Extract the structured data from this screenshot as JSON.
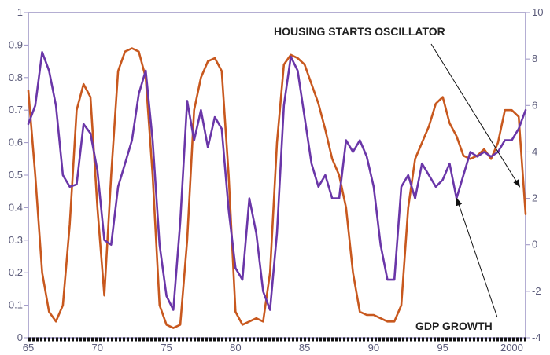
{
  "chart_data": {
    "type": "line",
    "title": "",
    "xlabel": "",
    "ylabel": "",
    "x_ticks": [
      "65",
      "70",
      "75",
      "80",
      "85",
      "90",
      "95",
      "2000"
    ],
    "left_axis": {
      "ticks": [
        "0",
        "0.1",
        "0.2",
        "0.3",
        "0.4",
        "0.5",
        "0.6",
        "0.7",
        "0.8",
        "0.9",
        "1"
      ],
      "ylim": [
        0,
        1
      ]
    },
    "right_axis": {
      "ticks": [
        "-4",
        "-2",
        "0",
        "2",
        "4",
        "6",
        "8",
        "10"
      ],
      "ylim": [
        -4,
        10
      ]
    },
    "xlim": [
      1965,
      2001
    ],
    "grid": false,
    "legend": "none",
    "annotations": [
      {
        "text": "HOUSING STARTS OSCILLATOR",
        "points_to_series": "housing_starts_oscillator",
        "target_x": 2000.8,
        "target_y": 0.44
      },
      {
        "text": "GDP GROWTH",
        "points_to_series": "gdp_growth",
        "target_x": 1995.9,
        "target_y": 2.2
      }
    ],
    "series": [
      {
        "name": "HOUSING STARTS OSCILLATOR",
        "id": "housing_starts_oscillator",
        "axis": "left",
        "color": "#c8581e",
        "x": [
          1965.0,
          1965.5,
          1966.0,
          1966.5,
          1967.0,
          1967.5,
          1968.0,
          1968.5,
          1969.0,
          1969.5,
          1970.0,
          1970.5,
          1971.0,
          1971.5,
          1972.0,
          1972.5,
          1973.0,
          1973.5,
          1974.0,
          1974.5,
          1975.0,
          1975.5,
          1976.0,
          1976.5,
          1977.0,
          1977.5,
          1978.0,
          1978.5,
          1979.0,
          1979.5,
          1980.0,
          1980.5,
          1981.0,
          1981.5,
          1982.0,
          1982.5,
          1983.0,
          1983.5,
          1984.0,
          1984.5,
          1985.0,
          1985.5,
          1986.0,
          1986.5,
          1987.0,
          1987.5,
          1988.0,
          1988.5,
          1989.0,
          1989.5,
          1990.0,
          1990.5,
          1991.0,
          1991.5,
          1992.0,
          1992.5,
          1993.0,
          1993.5,
          1994.0,
          1994.5,
          1995.0,
          1995.5,
          1996.0,
          1996.5,
          1997.0,
          1997.5,
          1998.0,
          1998.5,
          1999.0,
          1999.5,
          2000.0,
          2000.5,
          2001.0
        ],
        "values": [
          0.76,
          0.5,
          0.2,
          0.08,
          0.05,
          0.1,
          0.35,
          0.7,
          0.78,
          0.74,
          0.4,
          0.13,
          0.5,
          0.82,
          0.88,
          0.89,
          0.88,
          0.8,
          0.5,
          0.1,
          0.04,
          0.03,
          0.04,
          0.3,
          0.7,
          0.8,
          0.85,
          0.86,
          0.82,
          0.5,
          0.08,
          0.04,
          0.05,
          0.06,
          0.05,
          0.2,
          0.6,
          0.84,
          0.87,
          0.86,
          0.84,
          0.78,
          0.72,
          0.64,
          0.55,
          0.5,
          0.4,
          0.2,
          0.08,
          0.07,
          0.07,
          0.06,
          0.05,
          0.05,
          0.1,
          0.4,
          0.55,
          0.6,
          0.65,
          0.72,
          0.74,
          0.66,
          0.62,
          0.56,
          0.55,
          0.56,
          0.58,
          0.55,
          0.6,
          0.7,
          0.7,
          0.68,
          0.38
        ]
      },
      {
        "name": "GDP GROWTH",
        "id": "gdp_growth",
        "axis": "right",
        "color": "#6a36a8",
        "x": [
          1965.0,
          1965.5,
          1966.0,
          1966.5,
          1967.0,
          1967.5,
          1968.0,
          1968.5,
          1969.0,
          1969.5,
          1970.0,
          1970.5,
          1971.0,
          1971.5,
          1972.0,
          1972.5,
          1973.0,
          1973.5,
          1974.0,
          1974.5,
          1975.0,
          1975.5,
          1976.0,
          1976.5,
          1977.0,
          1977.5,
          1978.0,
          1978.5,
          1979.0,
          1979.5,
          1980.0,
          1980.5,
          1981.0,
          1981.5,
          1982.0,
          1982.5,
          1983.0,
          1983.5,
          1984.0,
          1984.5,
          1985.0,
          1985.5,
          1986.0,
          1986.5,
          1987.0,
          1987.5,
          1988.0,
          1988.5,
          1989.0,
          1989.5,
          1990.0,
          1990.5,
          1991.0,
          1991.5,
          1992.0,
          1992.5,
          1993.0,
          1993.5,
          1994.0,
          1994.5,
          1995.0,
          1995.5,
          1996.0,
          1996.5,
          1997.0,
          1997.5,
          1998.0,
          1998.5,
          1999.0,
          1999.5,
          2000.0,
          2000.5,
          2001.0
        ],
        "values": [
          5.2,
          6.0,
          8.3,
          7.5,
          6.0,
          3.0,
          2.5,
          2.6,
          5.2,
          4.8,
          3.2,
          0.2,
          0.0,
          2.5,
          3.5,
          4.5,
          6.5,
          7.5,
          4.5,
          0.0,
          -2.2,
          -2.8,
          1.0,
          6.2,
          4.5,
          5.8,
          4.2,
          5.5,
          5.0,
          1.5,
          -1.0,
          -1.5,
          2.0,
          0.5,
          -2.0,
          -2.8,
          0.5,
          6.0,
          8.1,
          7.5,
          5.5,
          3.5,
          2.5,
          3.0,
          2.0,
          2.0,
          4.5,
          4.0,
          4.5,
          3.8,
          2.5,
          0.0,
          -1.5,
          -1.5,
          2.5,
          3.0,
          2.0,
          3.5,
          3.0,
          2.5,
          2.8,
          3.5,
          2.0,
          3.0,
          4.0,
          3.8,
          4.0,
          3.8,
          4.0,
          4.5,
          4.5,
          5.0,
          5.8
        ]
      }
    ]
  }
}
